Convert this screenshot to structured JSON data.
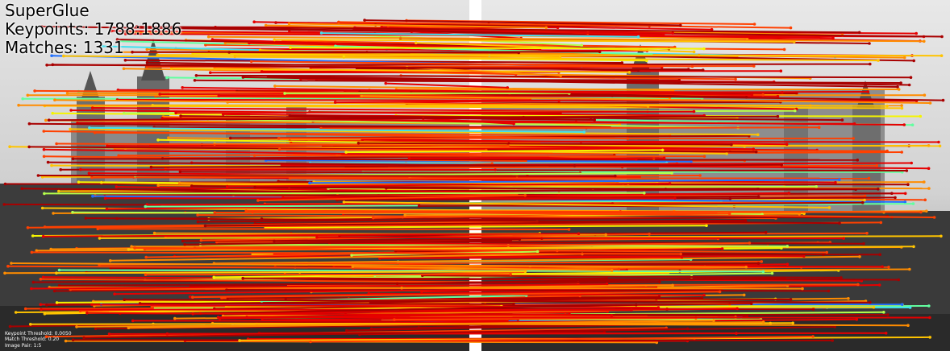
{
  "overlay": {
    "method": "SuperGlue",
    "keypoints_line": "Keypoints: 1788:1886",
    "matches_line": "Matches: 1331",
    "keypoint_threshold": "Keypoint Threshold: 0.0050",
    "match_threshold": "Match Threshold: 0.20",
    "image_pair": "Image Pair: 1:5"
  },
  "scene": {
    "sky_color": "#d4d4d4",
    "building_color": "#7a7a7a",
    "foreground_color": "#3a3a3a",
    "separator_color": "#ffffff"
  },
  "matches": {
    "total": 1331,
    "colormap": [
      "#a80000",
      "#e60000",
      "#ff4000",
      "#ff8c00",
      "#ffc400",
      "#f5f500",
      "#b4ff4c",
      "#62ffa0",
      "#40e0f0",
      "#1f6fff",
      "#0000c0"
    ]
  }
}
